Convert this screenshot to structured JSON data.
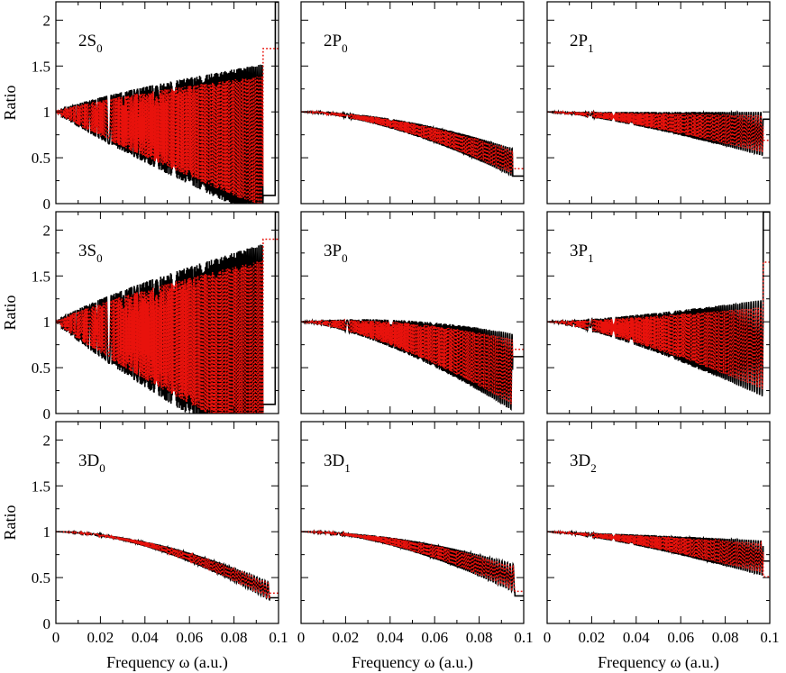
{
  "chart_data": {
    "type": "line",
    "layout": "3x3 grid",
    "xlabel": "Frequency ω (a.u.)",
    "ylabel": "Ratio",
    "xlim": [
      0,
      0.1
    ],
    "ylim": [
      0,
      2.2
    ],
    "x_ticks": [
      "0",
      "0.02",
      "0.04",
      "0.06",
      "0.08",
      "0.1"
    ],
    "y_ticks": [
      "0",
      "0.5",
      "1",
      "1.5",
      "2"
    ],
    "series_styles": [
      {
        "name": "series-1",
        "color": "#000000",
        "style": "solid"
      },
      {
        "name": "series-2",
        "color": "#e8120c",
        "style": "dotted"
      }
    ],
    "panels": [
      {
        "label": "2S",
        "subscript": "0",
        "kind": "S",
        "amp": 0.72,
        "peak": 1.72,
        "tail": 1.78
      },
      {
        "label": "2P",
        "subscript": "0",
        "kind": "Pd",
        "drop": 0.6,
        "amp": 0.16,
        "final": 0.3
      },
      {
        "label": "2P",
        "subscript": "1",
        "kind": "Pf",
        "drop": 0.25,
        "amp": 0.25,
        "final": 0.92
      },
      {
        "label": "3S",
        "subscript": "0",
        "kind": "S2",
        "amp": 1.0,
        "peak": 2.2,
        "tail": 2.0
      },
      {
        "label": "3P",
        "subscript": "0",
        "kind": "Pd",
        "drop": 0.6,
        "amp": 0.45,
        "final": 0.62
      },
      {
        "label": "3P",
        "subscript": "1",
        "kind": "Pf",
        "drop": 0.3,
        "amp": 0.55,
        "final": 2.2
      },
      {
        "label": "3D",
        "subscript": "0",
        "kind": "D",
        "drop": 0.7,
        "amp": 0.1,
        "final": 0.28
      },
      {
        "label": "3D",
        "subscript": "1",
        "kind": "D",
        "drop": 0.55,
        "amp": 0.16,
        "final": 0.3
      },
      {
        "label": "3D",
        "subscript": "2",
        "kind": "Pf",
        "drop": 0.3,
        "amp": 0.2,
        "final": 0.68
      }
    ]
  }
}
